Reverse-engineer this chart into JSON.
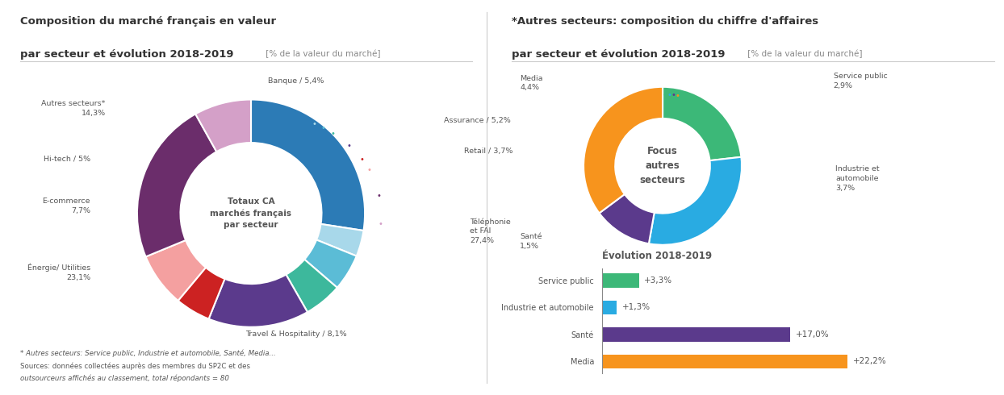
{
  "left_title1": "Composition du marché français en valeur",
  "left_title2": "par secteur et évolution 2018-2019",
  "left_title2_suffix": " [% de la valeur du marché]",
  "right_title1": "*Autres secteurs: composition du chiffre d'affaires",
  "right_title2": "par secteur et évolution 2018-2019",
  "right_title2_suffix": " [% de la valeur du marché]",
  "pie1_values": [
    27.4,
    3.7,
    5.2,
    5.4,
    14.3,
    5.0,
    7.7,
    23.1,
    8.1
  ],
  "pie1_colors": [
    "#2c7bb6",
    "#a8d8ea",
    "#5bbcd6",
    "#3db89c",
    "#5b3a8c",
    "#cc2222",
    "#f4a0a0",
    "#6b2d6b",
    "#d4a0c8"
  ],
  "pie1_center_text": "Totaux CA\nmarchés français\npar secteur",
  "pie2_values": [
    2.9,
    3.7,
    1.5,
    4.4
  ],
  "pie2_colors": [
    "#3cb878",
    "#29abe2",
    "#5b3a8c",
    "#f7941d"
  ],
  "pie2_center_text": "Focus\nautres\nsecteurs",
  "bar_labels": [
    "Service public",
    "Industrie et automobile",
    "Santé",
    "Media"
  ],
  "bar_values": [
    3.3,
    1.3,
    17.0,
    22.2
  ],
  "bar_colors": [
    "#3cb878",
    "#29abe2",
    "#5b3a8c",
    "#f7941d"
  ],
  "bar_annotations": [
    "+3,3%",
    "+1,3%",
    "+17,0%",
    "+22,2%"
  ],
  "bar_title": "Évolution 2018-2019",
  "footnote1": "* Autres secteurs: Service public, Industrie et automobile, Santé, Media...",
  "footnote2": "Sources: données collectées auprès des membres du SP2C et des",
  "footnote3": "outsourceurs affichés au classement, total répondants = 80",
  "bg_color": "#ffffff",
  "text_color_dark": "#555555",
  "text_color_title": "#333333",
  "separator_color": "#cccccc"
}
